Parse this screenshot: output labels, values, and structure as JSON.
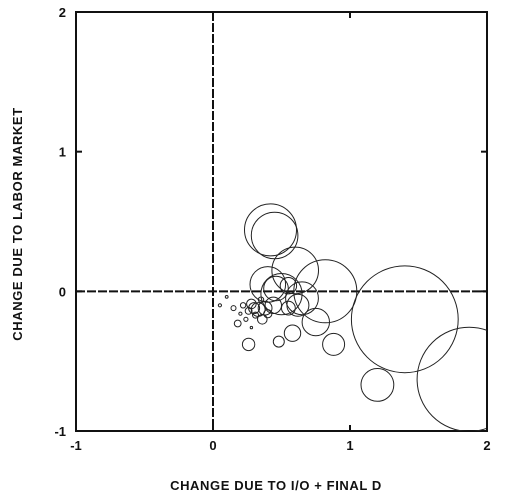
{
  "chart_data": {
    "type": "scatter",
    "title": "",
    "xlabel": "CHANGE DUE TO I/O + FINAL D",
    "ylabel": "CHANGE DUE TO LABOR MARKET",
    "xlim": [
      -1,
      2
    ],
    "ylim": [
      -1,
      2
    ],
    "x_ticks": [
      -1,
      0,
      1,
      2
    ],
    "x_tick_labels": [
      "-1",
      "0",
      "1",
      "2"
    ],
    "y_ticks": [
      -1,
      0,
      1,
      2
    ],
    "y_tick_labels": [
      "-1",
      "0",
      "1",
      "2"
    ],
    "reference_lines": {
      "x": 0,
      "y": 0,
      "style": "dashed"
    },
    "grid": false,
    "legend": "none",
    "bubble_radius_units": "x-axis data units",
    "points": [
      {
        "x": 0.05,
        "y": -0.1,
        "r": 0.012
      },
      {
        "x": 0.1,
        "y": -0.04,
        "r": 0.01
      },
      {
        "x": 0.15,
        "y": -0.12,
        "r": 0.018
      },
      {
        "x": 0.18,
        "y": -0.23,
        "r": 0.025
      },
      {
        "x": 0.2,
        "y": -0.16,
        "r": 0.012
      },
      {
        "x": 0.22,
        "y": -0.1,
        "r": 0.02
      },
      {
        "x": 0.24,
        "y": -0.2,
        "r": 0.015
      },
      {
        "x": 0.26,
        "y": -0.38,
        "r": 0.045
      },
      {
        "x": 0.26,
        "y": -0.14,
        "r": 0.025
      },
      {
        "x": 0.28,
        "y": -0.26,
        "r": 0.008
      },
      {
        "x": 0.28,
        "y": -0.09,
        "r": 0.035
      },
      {
        "x": 0.3,
        "y": -0.12,
        "r": 0.04
      },
      {
        "x": 0.31,
        "y": -0.17,
        "r": 0.022
      },
      {
        "x": 0.33,
        "y": -0.13,
        "r": 0.05
      },
      {
        "x": 0.35,
        "y": -0.06,
        "r": 0.02
      },
      {
        "x": 0.36,
        "y": -0.2,
        "r": 0.035
      },
      {
        "x": 0.38,
        "y": -0.12,
        "r": 0.05
      },
      {
        "x": 0.4,
        "y": 0.05,
        "r": 0.13
      },
      {
        "x": 0.4,
        "y": -0.16,
        "r": 0.03
      },
      {
        "x": 0.42,
        "y": 0.44,
        "r": 0.19
      },
      {
        "x": 0.45,
        "y": 0.4,
        "r": 0.17
      },
      {
        "x": 0.44,
        "y": -0.1,
        "r": 0.06
      },
      {
        "x": 0.46,
        "y": 0.02,
        "r": 0.09
      },
      {
        "x": 0.48,
        "y": -0.36,
        "r": 0.04
      },
      {
        "x": 0.5,
        "y": -0.02,
        "r": 0.15
      },
      {
        "x": 0.55,
        "y": -0.12,
        "r": 0.05
      },
      {
        "x": 0.55,
        "y": 0.04,
        "r": 0.06
      },
      {
        "x": 0.58,
        "y": -0.3,
        "r": 0.06
      },
      {
        "x": 0.6,
        "y": 0.15,
        "r": 0.17
      },
      {
        "x": 0.62,
        "y": -0.1,
        "r": 0.08
      },
      {
        "x": 0.65,
        "y": -0.05,
        "r": 0.12
      },
      {
        "x": 0.75,
        "y": -0.22,
        "r": 0.1
      },
      {
        "x": 0.82,
        "y": 0.0,
        "r": 0.23
      },
      {
        "x": 0.88,
        "y": -0.38,
        "r": 0.08
      },
      {
        "x": 1.2,
        "y": -0.67,
        "r": 0.12
      },
      {
        "x": 1.4,
        "y": -0.2,
        "r": 0.39
      },
      {
        "x": 1.87,
        "y": -0.63,
        "r": 0.38
      }
    ]
  }
}
